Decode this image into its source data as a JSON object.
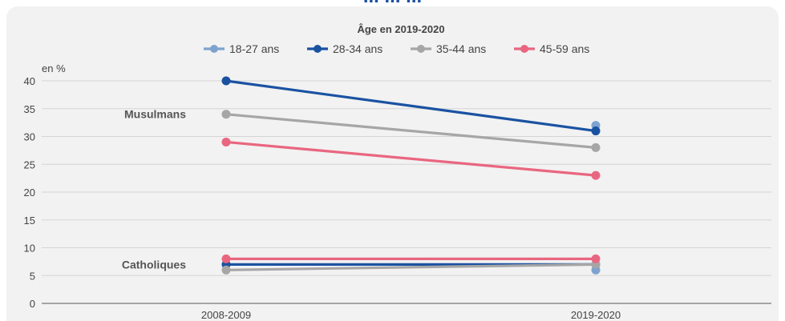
{
  "chart_data": {
    "type": "line",
    "top_title_fragment": "... ... ...",
    "legend_title": "Âge en 2019-2020",
    "ylabel": "en %",
    "x": [
      "2008-2009",
      "2019-2020"
    ],
    "ylim": [
      0,
      40
    ],
    "yticks": [
      0,
      5,
      10,
      15,
      20,
      25,
      30,
      35,
      40
    ],
    "legend_position": "top-center",
    "grid": "horizontal",
    "series": [
      {
        "name": "18-27 ans",
        "color": "#7ea3cf",
        "groups": {
          "Musulmans": [
            null,
            32
          ],
          "Catholiques": [
            null,
            6
          ]
        }
      },
      {
        "name": "28-34 ans",
        "color": "#1a52a2",
        "groups": {
          "Musulmans": [
            40,
            31
          ],
          "Catholiques": [
            7,
            7
          ]
        }
      },
      {
        "name": "35-44 ans",
        "color": "#a6a6a6",
        "groups": {
          "Musulmans": [
            34,
            28
          ],
          "Catholiques": [
            6,
            7
          ]
        }
      },
      {
        "name": "45-59 ans",
        "color": "#e96680",
        "groups": {
          "Musulmans": [
            29,
            23
          ],
          "Catholiques": [
            8,
            8
          ]
        }
      }
    ],
    "annotations": [
      {
        "text": "Musulmans",
        "y": 34
      },
      {
        "text": "Catholiques",
        "y": 7
      }
    ]
  }
}
